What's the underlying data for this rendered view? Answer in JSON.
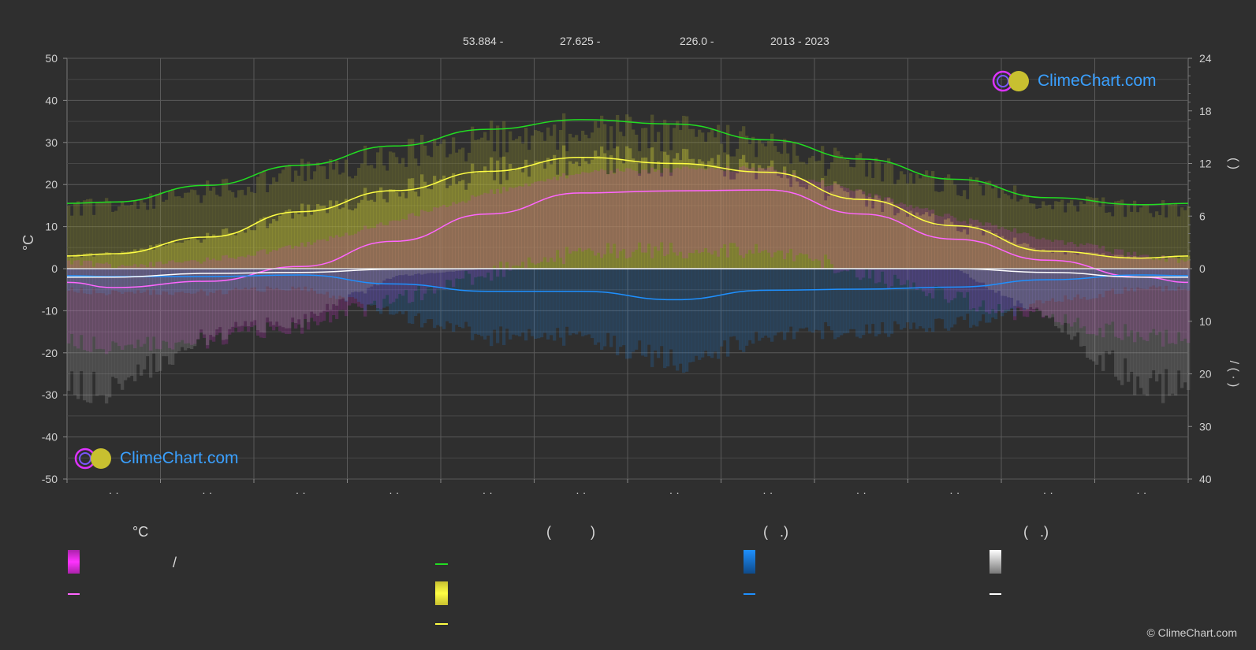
{
  "header": {
    "latitude": "53.884 -",
    "longitude": "27.625 -",
    "elevation": "226.0 -",
    "years": "2013 - 2023"
  },
  "brand": {
    "logo_text": "ClimeChart.com",
    "copyright": "© ClimeChart.com"
  },
  "colors": {
    "background": "#2f2f2f",
    "grid": "#555555",
    "daylight": "#22dd22",
    "sunshine": "#ffff44",
    "max_temp": "#ff66ff",
    "min_temp_band": "#cc33cc",
    "precip": "#1e90ff",
    "snow": "#ffffff",
    "brand": "#3aa0ff"
  },
  "legend": {
    "col1_title": "°C",
    "col1_sep": "/",
    "col2_title": "(          )",
    "col3_title": "(   .)",
    "col4_title": "(   .)"
  },
  "chart_data": {
    "type": "line",
    "months": [
      "· ·",
      "· ·",
      "· ·",
      "· ·",
      "· ·",
      "· ·",
      "· ·",
      "· ·",
      "· ·",
      "· ·",
      "· ·",
      "· ·"
    ],
    "left_axis": {
      "label": "°C",
      "ylim": [
        -50,
        50
      ],
      "ticks": [
        "50",
        "40",
        "30",
        "20",
        "10",
        "0",
        "-10",
        "-20",
        "-30",
        "-40",
        "-50"
      ]
    },
    "right_axis_top": {
      "label": "(        )",
      "ylim": [
        0,
        24
      ],
      "ticks": [
        "24",
        "18",
        "12",
        "6",
        "0"
      ]
    },
    "right_axis_bottom": {
      "label": "/          (   ·   )",
      "ylim": [
        0,
        40
      ],
      "ticks": [
        "10",
        "20",
        "30",
        "40"
      ]
    },
    "series": [
      {
        "key": "daylight",
        "unit": "hours",
        "values": [
          7.6,
          9.5,
          11.8,
          14.0,
          15.9,
          17.0,
          16.5,
          14.7,
          12.5,
          10.2,
          8.1,
          7.3
        ]
      },
      {
        "key": "sunshine",
        "unit": "hours",
        "values": [
          1.7,
          3.6,
          6.5,
          8.9,
          11.1,
          12.7,
          12.0,
          11.0,
          7.9,
          4.9,
          2.0,
          1.2
        ]
      },
      {
        "key": "max_temp",
        "unit": "°C",
        "values": [
          -4.5,
          -3.0,
          0.5,
          6.5,
          13.0,
          18.0,
          18.5,
          18.7,
          13.0,
          7.0,
          2.0,
          -2.0
        ]
      },
      {
        "key": "rain",
        "unit": "mm/day",
        "values": [
          1.5,
          1.5,
          1.2,
          2.9,
          4.3,
          4.3,
          5.9,
          4.1,
          3.9,
          3.5,
          2.1,
          1.2
        ]
      },
      {
        "key": "snow",
        "unit": "mm/day",
        "values": [
          1.6,
          0.9,
          0.7,
          0.1,
          0.0,
          0.0,
          0.0,
          0.0,
          0.0,
          0.0,
          0.7,
          1.6
        ]
      }
    ]
  }
}
